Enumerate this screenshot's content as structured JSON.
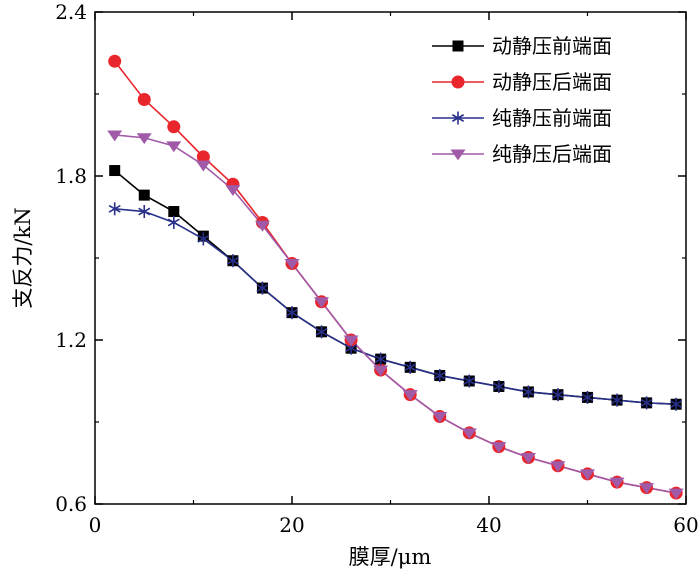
{
  "chart_data": {
    "type": "line",
    "xlabel": "膜厚/μm",
    "ylabel": "支反力/kN",
    "xlim": [
      0,
      60
    ],
    "ylim": [
      0.6,
      2.4
    ],
    "xticks": [
      0,
      20,
      40,
      60
    ],
    "yticks": [
      0.6,
      1.2,
      1.8,
      2.4
    ],
    "grid": false,
    "legend_position": "top-right",
    "series": [
      {
        "name": "动静压前端面",
        "color": "#000000",
        "marker": "square",
        "x": [
          2,
          5,
          8,
          11,
          14,
          17,
          20,
          23,
          26,
          29,
          32,
          35,
          38,
          41,
          44,
          47,
          50,
          53,
          56,
          59
        ],
        "y": [
          1.82,
          1.73,
          1.67,
          1.58,
          1.49,
          1.39,
          1.3,
          1.23,
          1.17,
          1.13,
          1.1,
          1.07,
          1.05,
          1.03,
          1.01,
          1.0,
          0.99,
          0.98,
          0.97,
          0.965
        ]
      },
      {
        "name": "动静压后端面",
        "color": "#e8262b",
        "marker": "circle",
        "x": [
          2,
          5,
          8,
          11,
          14,
          17,
          20,
          23,
          26,
          29,
          32,
          35,
          38,
          41,
          44,
          47,
          50,
          53,
          56,
          59
        ],
        "y": [
          2.22,
          2.08,
          1.98,
          1.87,
          1.77,
          1.63,
          1.48,
          1.34,
          1.2,
          1.09,
          1.0,
          0.92,
          0.86,
          0.81,
          0.77,
          0.74,
          0.71,
          0.68,
          0.66,
          0.64
        ]
      },
      {
        "name": "纯静压前端面",
        "color": "#28308a",
        "marker": "asterisk",
        "x": [
          2,
          5,
          8,
          11,
          14,
          17,
          20,
          23,
          26,
          29,
          32,
          35,
          38,
          41,
          44,
          47,
          50,
          53,
          56,
          59
        ],
        "y": [
          1.68,
          1.67,
          1.63,
          1.57,
          1.49,
          1.39,
          1.3,
          1.23,
          1.17,
          1.13,
          1.1,
          1.07,
          1.05,
          1.03,
          1.01,
          1.0,
          0.99,
          0.98,
          0.97,
          0.965
        ]
      },
      {
        "name": "纯静压后端面",
        "color": "#a05aa8",
        "marker": "triangle-down",
        "x": [
          2,
          5,
          8,
          11,
          14,
          17,
          20,
          23,
          26,
          29,
          32,
          35,
          38,
          41,
          44,
          47,
          50,
          53,
          56,
          59
        ],
        "y": [
          1.95,
          1.94,
          1.91,
          1.84,
          1.75,
          1.62,
          1.48,
          1.34,
          1.2,
          1.09,
          1.0,
          0.92,
          0.86,
          0.81,
          0.77,
          0.74,
          0.71,
          0.68,
          0.66,
          0.64
        ]
      }
    ]
  }
}
